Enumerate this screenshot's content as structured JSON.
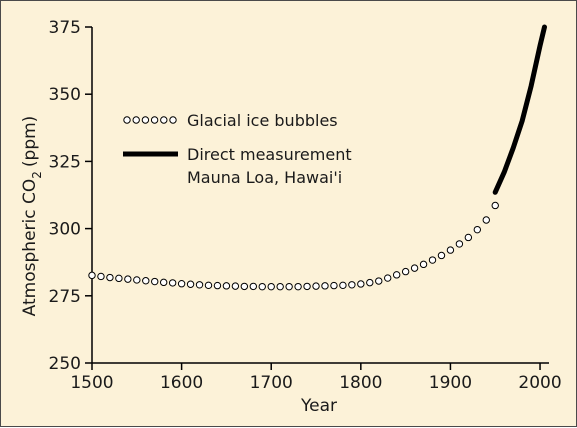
{
  "chart_data": {
    "type": "line",
    "xlabel": "Year",
    "ylabel_main": "Atmospheric CO",
    "ylabel_sub": "2",
    "ylabel_unit": "(ppm)",
    "xlim": [
      1500,
      2010
    ],
    "ylim": [
      250,
      375
    ],
    "xticks": [
      1500,
      1600,
      1700,
      1800,
      1900,
      2000
    ],
    "yticks": [
      250,
      275,
      300,
      325,
      350,
      375
    ],
    "legend_position": "upper-left",
    "colors": {
      "background": "#fcf2d8",
      "ink": "#000000",
      "marker_fill": "#ffffff"
    },
    "series": [
      {
        "name": "Glacial ice bubbles",
        "style": "open-circle-markers",
        "x": [
          1500,
          1510,
          1520,
          1530,
          1540,
          1550,
          1560,
          1570,
          1580,
          1590,
          1600,
          1610,
          1620,
          1630,
          1640,
          1650,
          1660,
          1670,
          1680,
          1690,
          1700,
          1710,
          1720,
          1730,
          1740,
          1750,
          1760,
          1770,
          1780,
          1790,
          1800,
          1810,
          1820,
          1830,
          1840,
          1850,
          1860,
          1870,
          1880,
          1890,
          1900,
          1910,
          1920,
          1930,
          1940,
          1950
        ],
        "y": [
          282.6,
          282.2,
          281.8,
          281.5,
          281.2,
          280.9,
          280.6,
          280.3,
          280.0,
          279.8,
          279.5,
          279.3,
          279.1,
          278.9,
          278.8,
          278.7,
          278.6,
          278.5,
          278.5,
          278.4,
          278.4,
          278.4,
          278.4,
          278.4,
          278.5,
          278.6,
          278.7,
          278.8,
          278.9,
          279.1,
          279.4,
          279.9,
          280.5,
          281.6,
          282.8,
          284.0,
          285.3,
          286.7,
          288.3,
          290.0,
          292.0,
          294.3,
          296.7,
          299.6,
          303.2,
          308.6
        ]
      },
      {
        "name_line1": "Direct measurement",
        "name_line2": "Mauna Loa, Hawai'i",
        "style": "thick-line",
        "x": [
          1950,
          1960,
          1970,
          1980,
          1990,
          2000,
          2005
        ],
        "y": [
          313.5,
          321,
          330,
          340,
          353,
          368,
          375
        ]
      }
    ]
  }
}
